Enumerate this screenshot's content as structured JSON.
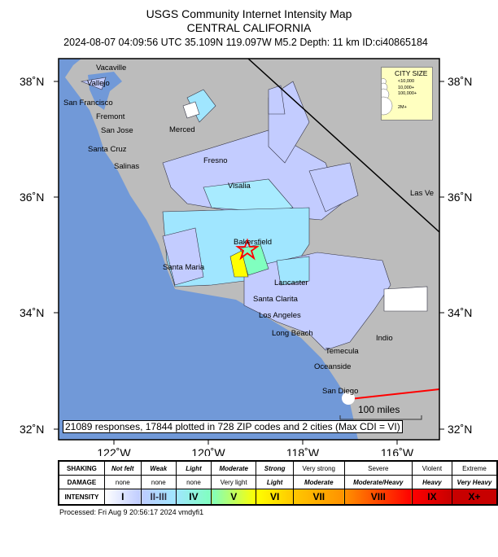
{
  "header": {
    "title": "USGS Community Internet Intensity Map",
    "region": "CENTRAL CALIFORNIA",
    "event": "2024-08-07 04:09:56 UTC 35.109N 119.097W M5.2 Depth: 11 km ID:ci40865184"
  },
  "axes": {
    "lat_ticks": [
      "38˚N",
      "36˚N",
      "34˚N",
      "32˚N"
    ],
    "lon_ticks": [
      "122˚W",
      "120˚W",
      "118˚W",
      "116˚W"
    ]
  },
  "cities": [
    "Vacaville",
    "Vallejo",
    "San Francisco",
    "Fremont",
    "San Jose",
    "Santa Cruz",
    "Salinas",
    "Merced",
    "Fresno",
    "Visalia",
    "Bakersfield",
    "Santa Maria",
    "Lancaster",
    "Santa Clarita",
    "Los Angeles",
    "Long Beach",
    "Indio",
    "Temecula",
    "Oceanside",
    "San Diego",
    "Las Ve"
  ],
  "city_size": {
    "title": "CITY SIZE",
    "items": [
      "<10,000",
      "10,000+",
      "100,000+",
      "2M+"
    ]
  },
  "epicenter": {
    "icon": "star-icon",
    "color": "#ff0000"
  },
  "banner": "21089 responses, 17844 plotted in 728 ZIP codes and 2 cities (Max CDI = VI)",
  "scale_label": "100 miles",
  "legend": {
    "shaking_label": "SHAKING",
    "damage_label": "DAMAGE",
    "intensity_label": "INTENSITY",
    "shaking": [
      "Not felt",
      "Weak",
      "Light",
      "Moderate",
      "Strong",
      "Very strong",
      "Severe",
      "Violent",
      "Extreme"
    ],
    "damage": [
      "none",
      "none",
      "none",
      "Very light",
      "Light",
      "Moderate",
      "Moderate/Heavy",
      "Heavy",
      "Very Heavy"
    ],
    "intensity": [
      "I",
      "II-III",
      "IV",
      "V",
      "VI",
      "VII",
      "VIII",
      "IX",
      "X+"
    ],
    "colors": [
      "#ffffff",
      "#bfccff",
      "#a0e6ff",
      "#80ffbf",
      "#ffff00",
      "#ffc800",
      "#ff9100",
      "#ff0000",
      "#c80000"
    ]
  },
  "processed": "Processed: Fri Aug  9 20:56:17 2024 vmdyfi1"
}
